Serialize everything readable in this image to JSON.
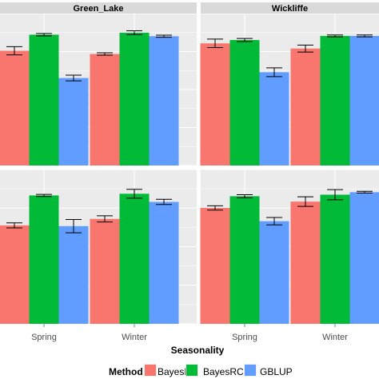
{
  "chart_data": {
    "type": "bar",
    "xlabel": "Seasonality",
    "ylabel": "",
    "categories": [
      "Spring",
      "Winter"
    ],
    "legend": {
      "title": "Method",
      "position": "bottom",
      "entries": [
        {
          "name": "BayesR",
          "color": "#F8766D"
        },
        {
          "name": "BayesRC",
          "color": "#00BA38"
        },
        {
          "name": "GBLUP",
          "color": "#619CFF"
        }
      ]
    },
    "panels": [
      {
        "strip": "Green_Lake",
        "row": 0,
        "col": 0,
        "ylim": [
          0,
          1
        ],
        "series": [
          {
            "name": "BayesR",
            "values": [
              0.755,
              0.734
            ],
            "err": [
              0.027,
              0.008
            ]
          },
          {
            "name": "BayesRC",
            "values": [
              0.861,
              0.874
            ],
            "err": [
              0.008,
              0.013
            ]
          },
          {
            "name": "GBLUP",
            "values": [
              0.576,
              0.851
            ],
            "err": [
              0.019,
              0.007
            ]
          }
        ]
      },
      {
        "strip": "Wickliffe",
        "row": 0,
        "col": 1,
        "ylim": [
          0,
          1
        ],
        "series": [
          {
            "name": "BayesR",
            "values": [
              0.804,
              0.77
            ],
            "err": [
              0.028,
              0.023
            ]
          },
          {
            "name": "BayesRC",
            "values": [
              0.826,
              0.853
            ],
            "err": [
              0.01,
              0.006
            ]
          },
          {
            "name": "GBLUP",
            "values": [
              0.614,
              0.853
            ],
            "err": [
              0.029,
              0.006
            ]
          }
        ]
      },
      {
        "strip": "",
        "row": 1,
        "col": 0,
        "ylim": [
          0,
          1
        ],
        "series": [
          {
            "name": "BayesR",
            "values": [
              0.638,
              0.68
            ],
            "err": [
              0.016,
              0.02
            ]
          },
          {
            "name": "BayesRC",
            "values": [
              0.832,
              0.843
            ],
            "err": [
              0.007,
              0.029
            ]
          },
          {
            "name": "GBLUP",
            "values": [
              0.633,
              0.79
            ],
            "err": [
              0.043,
              0.017
            ]
          }
        ]
      },
      {
        "strip": "",
        "row": 1,
        "col": 1,
        "ylim": [
          0,
          1
        ],
        "series": [
          {
            "name": "BayesR",
            "values": [
              0.751,
              0.792
            ],
            "err": [
              0.014,
              0.031
            ]
          },
          {
            "name": "BayesRC",
            "values": [
              0.827,
              0.837
            ],
            "err": [
              0.01,
              0.033
            ]
          },
          {
            "name": "GBLUP",
            "values": [
              0.665,
              0.853
            ],
            "err": [
              0.024,
              0.006
            ]
          }
        ]
      }
    ],
    "grid": true,
    "error_bars": true
  }
}
